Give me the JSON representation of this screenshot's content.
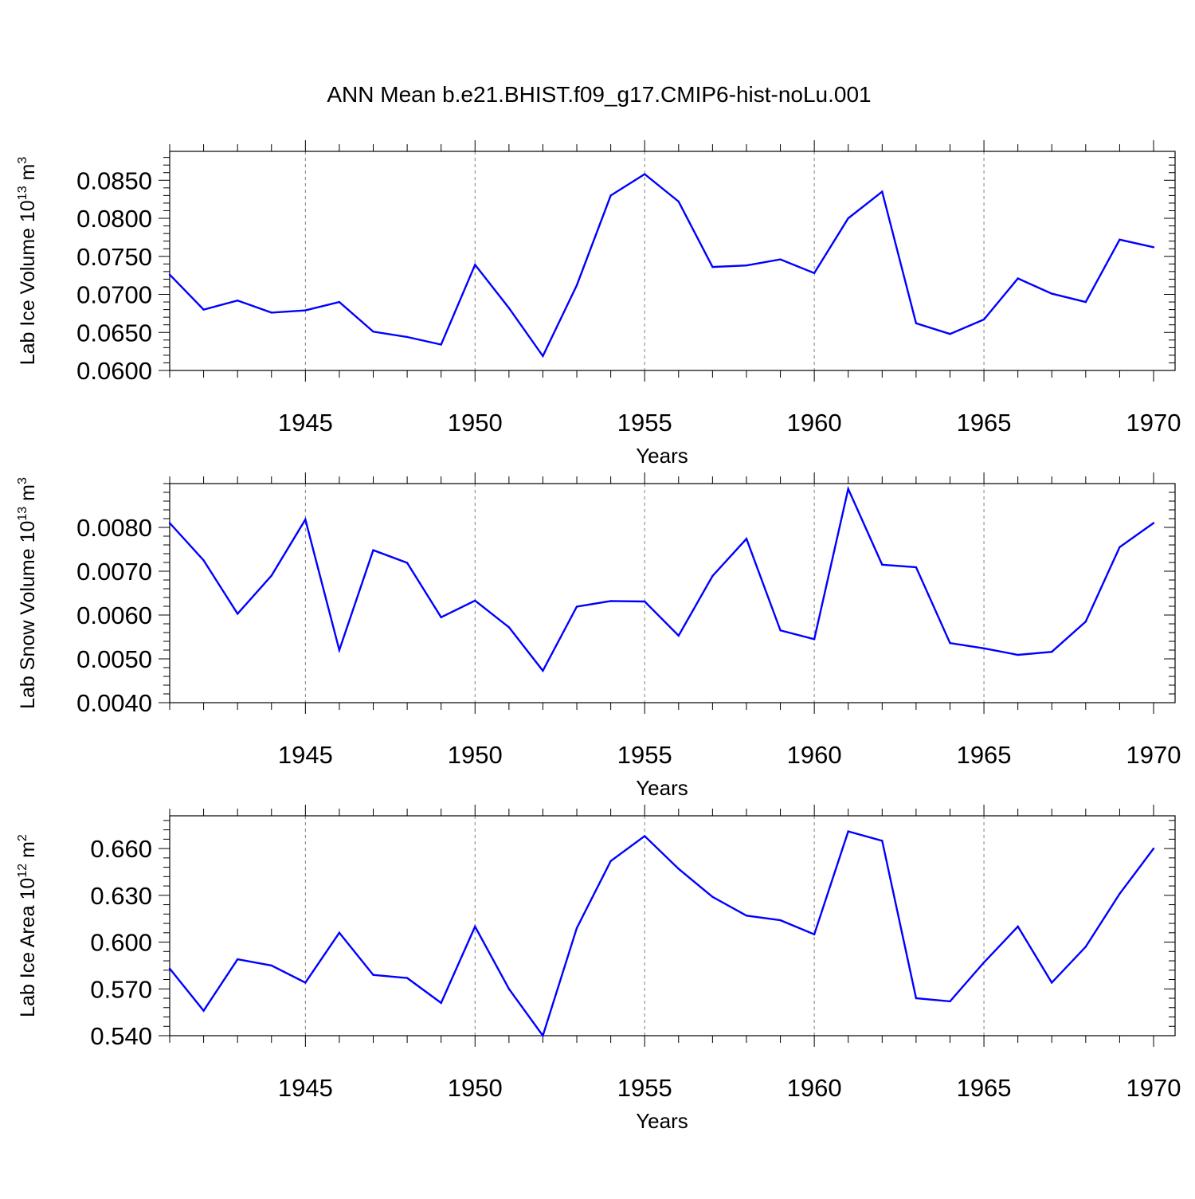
{
  "title": "ANN Mean b.e21.BHIST.f09_g17.CMIP6-hist-noLu.001",
  "colors": {
    "line": "#0000ff",
    "axis": "#000000",
    "grid": "#808080"
  },
  "chart_data": [
    {
      "type": "line",
      "ylabel": "Lab Ice Volume 10",
      "ylabel_exp": "13",
      "ylabel_unit": "m",
      "ylabel_unit_exp": "3",
      "xlabel": "Years",
      "xlim": [
        1941,
        1970
      ],
      "ylim": [
        0.06,
        0.0888
      ],
      "yticks": [
        "0.0600",
        "0.0650",
        "0.0700",
        "0.0750",
        "0.0800",
        "0.0850"
      ],
      "xticks": [
        "1945",
        "1950",
        "1955",
        "1960",
        "1965",
        "1970"
      ],
      "grid": "vertical-dashed",
      "x": [
        1941,
        1942,
        1943,
        1944,
        1945,
        1946,
        1947,
        1948,
        1949,
        1950,
        1951,
        1952,
        1953,
        1954,
        1955,
        1956,
        1957,
        1958,
        1959,
        1960,
        1961,
        1962,
        1963,
        1964,
        1965,
        1966,
        1967,
        1968,
        1969,
        1970
      ],
      "values": [
        0.0726,
        0.068,
        0.0692,
        0.0676,
        0.0679,
        0.069,
        0.0651,
        0.0644,
        0.0634,
        0.0739,
        0.0682,
        0.0619,
        0.0712,
        0.083,
        0.0858,
        0.0822,
        0.0736,
        0.0738,
        0.0746,
        0.0728,
        0.08,
        0.0835,
        0.0662,
        0.0648,
        0.0667,
        0.0721,
        0.0701,
        0.069,
        0.0772,
        0.0762
      ]
    },
    {
      "type": "line",
      "ylabel": "Lab Snow Volume 10",
      "ylabel_exp": "13",
      "ylabel_unit": "m",
      "ylabel_unit_exp": "3",
      "xlabel": "Years",
      "xlim": [
        1941,
        1970
      ],
      "ylim": [
        0.004,
        0.009
      ],
      "yticks": [
        "0.0040",
        "0.0050",
        "0.0060",
        "0.0070",
        "0.0080"
      ],
      "xticks": [
        "1945",
        "1950",
        "1955",
        "1960",
        "1965",
        "1970"
      ],
      "grid": "vertical-dashed",
      "x": [
        1941,
        1942,
        1943,
        1944,
        1945,
        1946,
        1947,
        1948,
        1949,
        1950,
        1951,
        1952,
        1953,
        1954,
        1955,
        1956,
        1957,
        1958,
        1959,
        1960,
        1961,
        1962,
        1963,
        1964,
        1965,
        1966,
        1967,
        1968,
        1969,
        1970
      ],
      "values": [
        0.0081,
        0.00725,
        0.00603,
        0.0069,
        0.00818,
        0.0052,
        0.00748,
        0.00719,
        0.00595,
        0.00633,
        0.00572,
        0.00473,
        0.00619,
        0.00632,
        0.00631,
        0.00553,
        0.00689,
        0.00774,
        0.00565,
        0.00545,
        0.00888,
        0.00715,
        0.00709,
        0.00536,
        0.00524,
        0.00509,
        0.00516,
        0.00585,
        0.00755,
        0.0081
      ]
    },
    {
      "type": "line",
      "ylabel": "Lab Ice Area 10",
      "ylabel_exp": "12",
      "ylabel_unit": "m",
      "ylabel_unit_exp": "2",
      "xlabel": "Years",
      "xlim": [
        1941,
        1970
      ],
      "ylim": [
        0.54,
        0.681
      ],
      "yticks": [
        "0.540",
        "0.570",
        "0.600",
        "0.630",
        "0.660"
      ],
      "xticks": [
        "1945",
        "1950",
        "1955",
        "1960",
        "1965",
        "1970"
      ],
      "grid": "vertical-dashed",
      "x": [
        1941,
        1942,
        1943,
        1944,
        1945,
        1946,
        1947,
        1948,
        1949,
        1950,
        1951,
        1952,
        1953,
        1954,
        1955,
        1956,
        1957,
        1958,
        1959,
        1960,
        1961,
        1962,
        1963,
        1964,
        1965,
        1966,
        1967,
        1968,
        1969,
        1970
      ],
      "values": [
        0.583,
        0.556,
        0.589,
        0.585,
        0.574,
        0.606,
        0.579,
        0.577,
        0.561,
        0.61,
        0.57,
        0.54,
        0.609,
        0.652,
        0.668,
        0.647,
        0.629,
        0.617,
        0.614,
        0.605,
        0.671,
        0.665,
        0.564,
        0.562,
        0.587,
        0.61,
        0.574,
        0.597,
        0.631,
        0.66
      ]
    }
  ]
}
